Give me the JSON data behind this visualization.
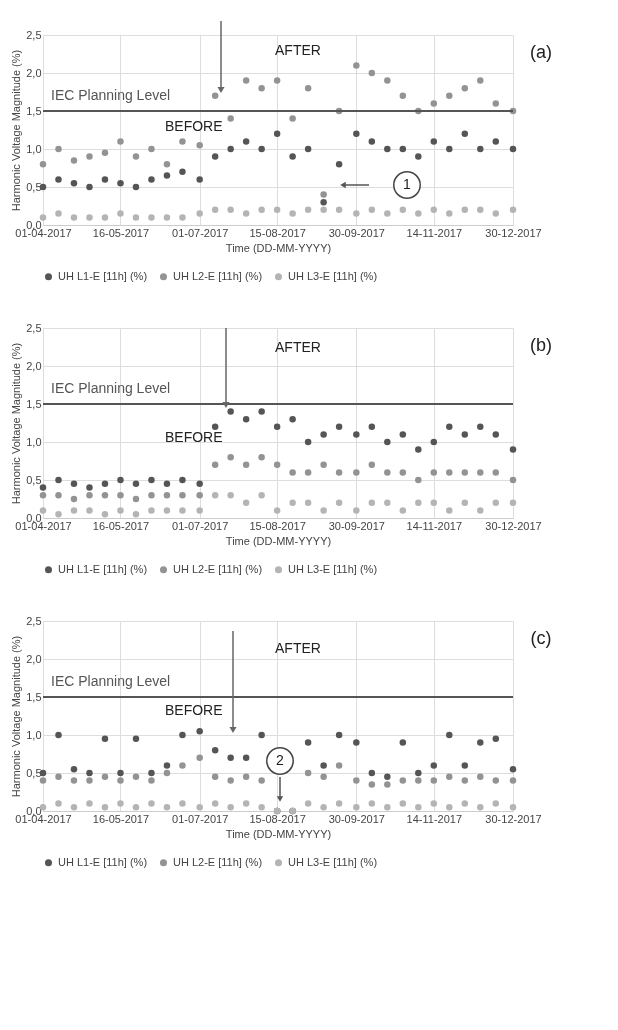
{
  "chart_data": [
    {
      "type": "scatter",
      "xlabel": "Time (DD-MM-YYYY)",
      "ylabel": "Harmonic Voltage Magnitude (%)",
      "annotations": [
        "AFTER",
        "BEFORE",
        "(a)",
        "1"
      ],
      "x": [
        "2017-04-01",
        "2017-04-10",
        "2017-04-19",
        "2017-04-28",
        "2017-05-07",
        "2017-05-16",
        "2017-05-25",
        "2017-06-03",
        "2017-06-12",
        "2017-06-21",
        "2017-07-01",
        "2017-07-10",
        "2017-07-19",
        "2017-07-28",
        "2017-08-06",
        "2017-08-15",
        "2017-08-24",
        "2017-09-02",
        "2017-09-11",
        "2017-09-20",
        "2017-09-30",
        "2017-10-09",
        "2017-10-18",
        "2017-10-27",
        "2017-11-05",
        "2017-11-14",
        "2017-11-23",
        "2017-12-02",
        "2017-12-11",
        "2017-12-20",
        "2017-12-30"
      ],
      "series": [
        {
          "name": "UH L1-E [11h] (%)",
          "color": "#555555",
          "values": [
            0.5,
            0.6,
            0.55,
            0.5,
            0.6,
            0.55,
            0.5,
            0.6,
            0.65,
            0.7,
            0.6,
            0.9,
            1.0,
            1.1,
            1.0,
            1.2,
            0.9,
            1.0,
            0.3,
            0.8,
            1.2,
            1.1,
            1.0,
            1.0,
            0.9,
            1.1,
            1.0,
            1.2,
            1.0,
            1.1,
            1.0
          ]
        },
        {
          "name": "UH L2-E [11h] (%)",
          "color": "#939393",
          "values": [
            0.8,
            1.0,
            0.85,
            0.9,
            0.95,
            1.1,
            0.9,
            1.0,
            0.8,
            1.1,
            1.05,
            1.7,
            1.4,
            1.9,
            1.8,
            1.9,
            1.4,
            1.8,
            0.4,
            1.5,
            2.1,
            2.0,
            1.9,
            1.7,
            1.5,
            1.6,
            1.7,
            1.8,
            1.9,
            1.6,
            1.5
          ]
        },
        {
          "name": "UH L3-E [11h] (%)",
          "color": "#b4b4b4",
          "values": [
            0.1,
            0.15,
            0.1,
            0.1,
            0.1,
            0.15,
            0.1,
            0.1,
            0.1,
            0.1,
            0.15,
            0.2,
            0.2,
            0.15,
            0.2,
            0.2,
            0.15,
            0.2,
            0.2,
            0.2,
            0.15,
            0.2,
            0.15,
            0.2,
            0.15,
            0.2,
            0.15,
            0.2,
            0.2,
            0.15,
            0.2
          ]
        }
      ],
      "xlim": [
        "2017-04-01",
        "2017-12-30"
      ],
      "xticks": [
        {
          "value": "2017-04-01",
          "label": "01-04-2017"
        },
        {
          "value": "2017-05-16",
          "label": "16-05-2017"
        },
        {
          "value": "2017-07-01",
          "label": "01-07-2017"
        },
        {
          "value": "2017-08-15",
          "label": "15-08-2017"
        },
        {
          "value": "2017-09-30",
          "label": "30-09-2017"
        },
        {
          "value": "2017-11-14",
          "label": "14-11-2017"
        },
        {
          "value": "2017-12-30",
          "label": "30-12-2017"
        }
      ],
      "ylim": [
        0,
        2.5
      ],
      "yticks": [
        {
          "value": 0,
          "label": "0,0"
        },
        {
          "value": 0.5,
          "label": "0,5"
        },
        {
          "value": 1,
          "label": "1,0"
        },
        {
          "value": 1.5,
          "label": "1,5"
        },
        {
          "value": 2,
          "label": "2,0"
        },
        {
          "value": 2.5,
          "label": "2,5"
        }
      ],
      "ref_lines": [
        {
          "axis": "y",
          "value": 1.5,
          "label": "IEC Planning Level",
          "color": "#555555"
        }
      ],
      "grid": true,
      "legend": "bottom",
      "marker": "circle"
    },
    {
      "type": "scatter",
      "xlabel": "Time (DD-MM-YYYY)",
      "ylabel": "Harmonic Voltage Magnitude (%)",
      "annotations": [
        "AFTER",
        "BEFORE",
        "(b)"
      ],
      "x": [
        "2017-04-01",
        "2017-04-10",
        "2017-04-19",
        "2017-04-28",
        "2017-05-07",
        "2017-05-16",
        "2017-05-25",
        "2017-06-03",
        "2017-06-12",
        "2017-06-21",
        "2017-07-01",
        "2017-07-10",
        "2017-07-19",
        "2017-07-28",
        "2017-08-06",
        "2017-08-15",
        "2017-08-24",
        "2017-09-02",
        "2017-09-11",
        "2017-09-20",
        "2017-09-30",
        "2017-10-09",
        "2017-10-18",
        "2017-10-27",
        "2017-11-05",
        "2017-11-14",
        "2017-11-23",
        "2017-12-02",
        "2017-12-11",
        "2017-12-20",
        "2017-12-30"
      ],
      "series": [
        {
          "name": "UH L1-E [11h] (%)",
          "color": "#555555",
          "values": [
            0.4,
            0.5,
            0.45,
            0.4,
            0.45,
            0.5,
            0.45,
            0.5,
            0.45,
            0.5,
            0.45,
            1.2,
            1.4,
            1.3,
            1.4,
            1.2,
            1.3,
            1.0,
            1.1,
            1.2,
            1.1,
            1.2,
            1.0,
            1.1,
            0.9,
            1.0,
            1.2,
            1.1,
            1.2,
            1.1,
            0.9
          ]
        },
        {
          "name": "UH L2-E [11h] (%)",
          "color": "#939393",
          "values": [
            0.3,
            0.3,
            0.25,
            0.3,
            0.3,
            0.3,
            0.25,
            0.3,
            0.3,
            0.3,
            0.3,
            0.7,
            0.8,
            0.7,
            0.8,
            0.7,
            0.6,
            0.6,
            0.7,
            0.6,
            0.6,
            0.7,
            0.6,
            0.6,
            0.5,
            0.6,
            0.6,
            0.6,
            0.6,
            0.6,
            0.5
          ]
        },
        {
          "name": "UH L3-E [11h] (%)",
          "color": "#b4b4b4",
          "values": [
            0.1,
            0.05,
            0.1,
            0.1,
            0.05,
            0.1,
            0.05,
            0.1,
            0.1,
            0.1,
            0.1,
            0.3,
            0.3,
            0.2,
            0.3,
            0.1,
            0.2,
            0.2,
            0.1,
            0.2,
            0.1,
            0.2,
            0.2,
            0.1,
            0.2,
            0.2,
            0.1,
            0.2,
            0.1,
            0.2,
            0.2
          ]
        }
      ],
      "xlim": [
        "2017-04-01",
        "2017-12-30"
      ],
      "xticks": [
        {
          "value": "2017-04-01",
          "label": "01-04-2017"
        },
        {
          "value": "2017-05-16",
          "label": "16-05-2017"
        },
        {
          "value": "2017-07-01",
          "label": "01-07-2017"
        },
        {
          "value": "2017-08-15",
          "label": "15-08-2017"
        },
        {
          "value": "2017-09-30",
          "label": "30-09-2017"
        },
        {
          "value": "2017-11-14",
          "label": "14-11-2017"
        },
        {
          "value": "2017-12-30",
          "label": "30-12-2017"
        }
      ],
      "ylim": [
        0,
        2.5
      ],
      "yticks": [
        {
          "value": 0,
          "label": "0,0"
        },
        {
          "value": 0.5,
          "label": "0,5"
        },
        {
          "value": 1,
          "label": "1,0"
        },
        {
          "value": 1.5,
          "label": "1,5"
        },
        {
          "value": 2,
          "label": "2,0"
        },
        {
          "value": 2.5,
          "label": "2,5"
        }
      ],
      "ref_lines": [
        {
          "axis": "y",
          "value": 1.5,
          "label": "IEC Planning Level",
          "color": "#555555"
        }
      ],
      "grid": true,
      "legend": "bottom",
      "marker": "circle"
    },
    {
      "type": "scatter",
      "xlabel": "Time (DD-MM-YYYY)",
      "ylabel": "Harmonic Voltage Magnitude (%)",
      "annotations": [
        "AFTER",
        "BEFORE",
        "(c)",
        "2"
      ],
      "x": [
        "2017-04-01",
        "2017-04-10",
        "2017-04-19",
        "2017-04-28",
        "2017-05-07",
        "2017-05-16",
        "2017-05-25",
        "2017-06-03",
        "2017-06-12",
        "2017-06-21",
        "2017-07-01",
        "2017-07-10",
        "2017-07-19",
        "2017-07-28",
        "2017-08-06",
        "2017-08-15",
        "2017-08-24",
        "2017-09-02",
        "2017-09-11",
        "2017-09-20",
        "2017-09-30",
        "2017-10-09",
        "2017-10-18",
        "2017-10-27",
        "2017-11-05",
        "2017-11-14",
        "2017-11-23",
        "2017-12-02",
        "2017-12-11",
        "2017-12-20",
        "2017-12-30"
      ],
      "series": [
        {
          "name": "UH L1-E [11h] (%)",
          "color": "#555555",
          "values": [
            0.5,
            1.0,
            0.55,
            0.5,
            0.95,
            0.5,
            0.95,
            0.5,
            0.6,
            1.0,
            1.05,
            0.8,
            0.7,
            0.7,
            1.0,
            0.0,
            0.0,
            0.9,
            0.6,
            1.0,
            0.9,
            0.5,
            0.45,
            0.9,
            0.5,
            0.6,
            1.0,
            0.6,
            0.9,
            0.95,
            0.55
          ]
        },
        {
          "name": "UH L2-E [11h] (%)",
          "color": "#939393",
          "values": [
            0.4,
            0.45,
            0.4,
            0.4,
            0.45,
            0.4,
            0.45,
            0.4,
            0.5,
            0.6,
            0.7,
            0.45,
            0.4,
            0.45,
            0.4,
            0.0,
            0.0,
            0.5,
            0.45,
            0.6,
            0.4,
            0.35,
            0.35,
            0.4,
            0.4,
            0.4,
            0.45,
            0.4,
            0.45,
            0.4,
            0.4
          ]
        },
        {
          "name": "UH L3-E [11h] (%)",
          "color": "#b4b4b4",
          "values": [
            0.05,
            0.1,
            0.05,
            0.1,
            0.05,
            0.1,
            0.05,
            0.1,
            0.05,
            0.1,
            0.05,
            0.1,
            0.05,
            0.1,
            0.05,
            0.0,
            0.0,
            0.1,
            0.05,
            0.1,
            0.05,
            0.1,
            0.05,
            0.1,
            0.05,
            0.1,
            0.05,
            0.1,
            0.05,
            0.1,
            0.05
          ]
        }
      ],
      "xlim": [
        "2017-04-01",
        "2017-12-30"
      ],
      "xticks": [
        {
          "value": "2017-04-01",
          "label": "01-04-2017"
        },
        {
          "value": "2017-05-16",
          "label": "16-05-2017"
        },
        {
          "value": "2017-07-01",
          "label": "01-07-2017"
        },
        {
          "value": "2017-08-15",
          "label": "15-08-2017"
        },
        {
          "value": "2017-09-30",
          "label": "30-09-2017"
        },
        {
          "value": "2017-11-14",
          "label": "14-11-2017"
        },
        {
          "value": "2017-12-30",
          "label": "30-12-2017"
        }
      ],
      "ylim": [
        0,
        2.5
      ],
      "yticks": [
        {
          "value": 0,
          "label": "0,0"
        },
        {
          "value": 0.5,
          "label": "0,5"
        },
        {
          "value": 1,
          "label": "1,0"
        },
        {
          "value": 1.5,
          "label": "1,5"
        },
        {
          "value": 2,
          "label": "2,0"
        },
        {
          "value": 2.5,
          "label": "2,5"
        }
      ],
      "ref_lines": [
        {
          "axis": "y",
          "value": 1.5,
          "label": "IEC Planning Level",
          "color": "#555555"
        }
      ],
      "grid": true,
      "legend": "bottom",
      "marker": "circle"
    }
  ]
}
